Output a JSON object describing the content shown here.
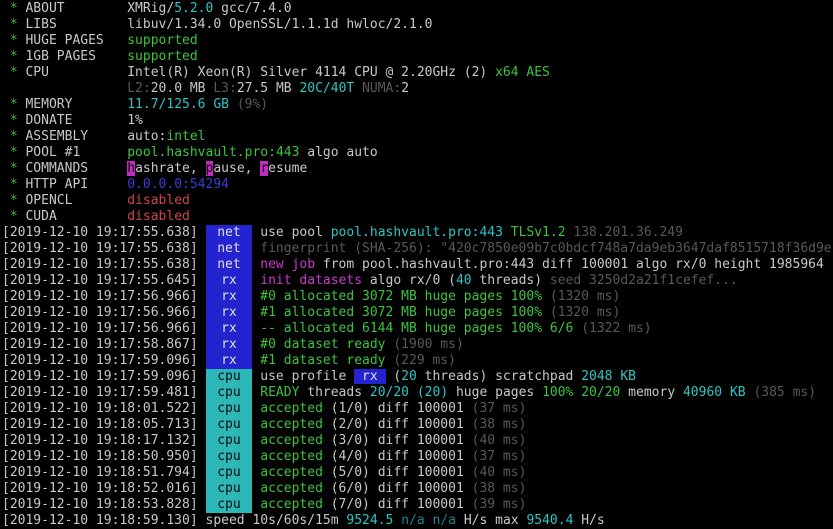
{
  "app": {
    "name": "XMRig miner console",
    "version_line": "XMRig/5.2.0 gcc/7.4.0"
  },
  "colors": {
    "background": "#000000",
    "white": "#c8c8c8",
    "green": "#3dc33d",
    "cyan": "#2ec4c4",
    "cyan_dim": "#1d8686",
    "gray": "#585858",
    "magenta": "#c93ac9",
    "red": "#cf4747",
    "blue": "#3c3cd6",
    "badge_blue_bg": "#2323d0",
    "badge_cyan_bg": "#2cb8b8",
    "badge_magenta_bg": "#c32cc3",
    "badge_text_light": "#e0e0e0",
    "badge_text_dark": "#0a0a0a"
  },
  "terminal": {
    "lines": [
      {
        "name": "about-row",
        "s": [
          {
            "t": " * ",
            "c": "g"
          },
          {
            "t": "ABOUT        ",
            "c": "w",
            "n": "config-label"
          },
          {
            "t": "XMRig/",
            "c": "w"
          },
          {
            "t": "5.2.0",
            "c": "c"
          },
          {
            "t": " gcc/7.4.0",
            "c": "w"
          }
        ]
      },
      {
        "name": "libs-row",
        "s": [
          {
            "t": " * ",
            "c": "g"
          },
          {
            "t": "LIBS         ",
            "c": "w",
            "n": "config-label"
          },
          {
            "t": "libuv/1.34.0 OpenSSL/1.1.1d hwloc/2.1.0",
            "c": "w"
          }
        ]
      },
      {
        "name": "huge-pages-row",
        "s": [
          {
            "t": " * ",
            "c": "g"
          },
          {
            "t": "HUGE PAGES   ",
            "c": "w",
            "n": "config-label"
          },
          {
            "t": "supported",
            "c": "g",
            "n": "status-value"
          }
        ]
      },
      {
        "name": "1gb-pages-row",
        "s": [
          {
            "t": " * ",
            "c": "g"
          },
          {
            "t": "1GB PAGES    ",
            "c": "w",
            "n": "config-label"
          },
          {
            "t": "supported",
            "c": "g",
            "n": "status-value"
          }
        ]
      },
      {
        "name": "cpu-row",
        "s": [
          {
            "t": " * ",
            "c": "g"
          },
          {
            "t": "CPU          ",
            "c": "w",
            "n": "config-label"
          },
          {
            "t": "Intel(R) Xeon(R) Silver 4114 CPU @ 2.20GHz (2) ",
            "c": "w"
          },
          {
            "t": "x64 AES",
            "c": "g"
          }
        ]
      },
      {
        "name": "cpu-cache-row",
        "s": [
          {
            "t": "                ",
            "c": "w"
          },
          {
            "t": "L2:",
            "c": "gy"
          },
          {
            "t": "20.0 MB ",
            "c": "w"
          },
          {
            "t": "L3:",
            "c": "gy"
          },
          {
            "t": "27.5 MB ",
            "c": "w"
          },
          {
            "t": "20C/40T ",
            "c": "c"
          },
          {
            "t": "NUMA:",
            "c": "gy"
          },
          {
            "t": "2",
            "c": "w"
          }
        ]
      },
      {
        "name": "memory-row",
        "s": [
          {
            "t": " * ",
            "c": "g"
          },
          {
            "t": "MEMORY       ",
            "c": "w",
            "n": "config-label"
          },
          {
            "t": "11.7/125.6 GB ",
            "c": "c"
          },
          {
            "t": "(9%)",
            "c": "gy"
          }
        ]
      },
      {
        "name": "donate-row",
        "s": [
          {
            "t": " * ",
            "c": "g"
          },
          {
            "t": "DONATE       ",
            "c": "w",
            "n": "config-label"
          },
          {
            "t": "1%",
            "c": "w"
          }
        ]
      },
      {
        "name": "assembly-row",
        "s": [
          {
            "t": " * ",
            "c": "g"
          },
          {
            "t": "ASSEMBLY     ",
            "c": "w",
            "n": "config-label"
          },
          {
            "t": "auto:",
            "c": "w"
          },
          {
            "t": "intel",
            "c": "g"
          }
        ]
      },
      {
        "name": "pool-row",
        "s": [
          {
            "t": " * ",
            "c": "g"
          },
          {
            "t": "POOL #1      ",
            "c": "w",
            "n": "config-label"
          },
          {
            "t": "pool.hashvault.pro:443",
            "c": "g",
            "n": "pool-address"
          },
          {
            "t": " algo auto",
            "c": "w"
          }
        ]
      },
      {
        "name": "commands-row",
        "s": [
          {
            "t": " * ",
            "c": "g"
          },
          {
            "t": "COMMANDS     ",
            "c": "w",
            "n": "config-label"
          },
          {
            "t": "h",
            "c": "bm",
            "n": "command-hotkey"
          },
          {
            "t": "ashrate, ",
            "c": "w"
          },
          {
            "t": "p",
            "c": "bm",
            "n": "command-hotkey"
          },
          {
            "t": "ause, ",
            "c": "w"
          },
          {
            "t": "r",
            "c": "bm",
            "n": "command-hotkey"
          },
          {
            "t": "esume",
            "c": "w"
          }
        ]
      },
      {
        "name": "http-api-row",
        "s": [
          {
            "t": " * ",
            "c": "g"
          },
          {
            "t": "HTTP API     ",
            "c": "w",
            "n": "config-label"
          },
          {
            "t": "0.0.0.0:54294",
            "c": "b",
            "n": "api-address"
          }
        ]
      },
      {
        "name": "opencl-row",
        "s": [
          {
            "t": " * ",
            "c": "g"
          },
          {
            "t": "OPENCL       ",
            "c": "w",
            "n": "config-label"
          },
          {
            "t": "disabled",
            "c": "r",
            "n": "status-value"
          }
        ]
      },
      {
        "name": "cuda-row",
        "s": [
          {
            "t": " * ",
            "c": "g"
          },
          {
            "t": "CUDA         ",
            "c": "w",
            "n": "config-label"
          },
          {
            "t": "disabled",
            "c": "r",
            "n": "status-value"
          }
        ]
      },
      {
        "name": "log-use-pool",
        "s": [
          {
            "t": "[2019-12-10 19:17:55.638] ",
            "c": "w",
            "n": "timestamp"
          },
          {
            "t": "net",
            "c": "bb",
            "n": "net-badge"
          },
          {
            "t": " use pool ",
            "c": "w"
          },
          {
            "t": "pool.hashvault.pro:443 ",
            "c": "c",
            "n": "pool-address"
          },
          {
            "t": "TLSv1.2 ",
            "c": "g"
          },
          {
            "t": "138.201.36.249",
            "c": "gy",
            "n": "pool-ip"
          }
        ]
      },
      {
        "name": "log-fingerprint",
        "s": [
          {
            "t": "[2019-12-10 19:17:55.638] ",
            "c": "w",
            "n": "timestamp"
          },
          {
            "t": "net",
            "c": "bb",
            "n": "net-badge"
          },
          {
            "t": " fingerprint (SHA-256): \"420c7850e09b7c0bdcf748a7da9eb3647daf8515718f36d9e",
            "c": "gy",
            "n": "tls-fingerprint"
          }
        ]
      },
      {
        "name": "log-new-job",
        "s": [
          {
            "t": "[2019-12-10 19:17:55.638] ",
            "c": "w",
            "n": "timestamp"
          },
          {
            "t": "net",
            "c": "bb",
            "n": "net-badge"
          },
          {
            "t": " ",
            "c": "w"
          },
          {
            "t": "new job",
            "c": "m"
          },
          {
            "t": " from pool.hashvault.pro:443 diff 100001 algo rx/0 height 1985964",
            "c": "w"
          }
        ]
      },
      {
        "name": "log-init-datasets",
        "s": [
          {
            "t": "[2019-12-10 19:17:55.645] ",
            "c": "w",
            "n": "timestamp"
          },
          {
            "t": "rx",
            "c": "bb",
            "n": "rx-badge"
          },
          {
            "t": " ",
            "c": "w"
          },
          {
            "t": "init datasets",
            "c": "m"
          },
          {
            "t": " algo rx/0 (",
            "c": "w"
          },
          {
            "t": "40",
            "c": "c"
          },
          {
            "t": " threads) ",
            "c": "w"
          },
          {
            "t": "seed 3250d2a21f1cefef...",
            "c": "gy"
          }
        ]
      },
      {
        "name": "log-alloc-0",
        "s": [
          {
            "t": "[2019-12-10 19:17:56.966] ",
            "c": "w",
            "n": "timestamp"
          },
          {
            "t": "rx",
            "c": "bb",
            "n": "rx-badge"
          },
          {
            "t": " ",
            "c": "w"
          },
          {
            "t": "#0 allocated 3072 MB huge pages 100% ",
            "c": "g"
          },
          {
            "t": "(1320 ms)",
            "c": "gy"
          }
        ]
      },
      {
        "name": "log-alloc-1",
        "s": [
          {
            "t": "[2019-12-10 19:17:56.966] ",
            "c": "w",
            "n": "timestamp"
          },
          {
            "t": "rx",
            "c": "bb",
            "n": "rx-badge"
          },
          {
            "t": " ",
            "c": "w"
          },
          {
            "t": "#1 allocated 3072 MB huge pages 100% ",
            "c": "g"
          },
          {
            "t": "(1320 ms)",
            "c": "gy"
          }
        ]
      },
      {
        "name": "log-alloc-total",
        "s": [
          {
            "t": "[2019-12-10 19:17:56.966] ",
            "c": "w",
            "n": "timestamp"
          },
          {
            "t": "rx",
            "c": "bb",
            "n": "rx-badge"
          },
          {
            "t": " ",
            "c": "w"
          },
          {
            "t": "-- allocated 6144 MB huge pages 100% 6/6 ",
            "c": "g"
          },
          {
            "t": "(1322 ms)",
            "c": "gy"
          }
        ]
      },
      {
        "name": "log-dataset-0",
        "s": [
          {
            "t": "[2019-12-10 19:17:58.867] ",
            "c": "w",
            "n": "timestamp"
          },
          {
            "t": "rx",
            "c": "bb",
            "n": "rx-badge"
          },
          {
            "t": " ",
            "c": "w"
          },
          {
            "t": "#0 dataset ready ",
            "c": "g"
          },
          {
            "t": "(1900 ms)",
            "c": "gy"
          }
        ]
      },
      {
        "name": "log-dataset-1",
        "s": [
          {
            "t": "[2019-12-10 19:17:59.096] ",
            "c": "w",
            "n": "timestamp"
          },
          {
            "t": "rx",
            "c": "bb",
            "n": "rx-badge"
          },
          {
            "t": " ",
            "c": "w"
          },
          {
            "t": "#1 dataset ready ",
            "c": "g"
          },
          {
            "t": "(229 ms)",
            "c": "gy"
          }
        ]
      },
      {
        "name": "log-use-profile",
        "s": [
          {
            "t": "[2019-12-10 19:17:59.096] ",
            "c": "w",
            "n": "timestamp"
          },
          {
            "t": "cpu",
            "c": "bc",
            "n": "cpu-badge"
          },
          {
            "t": " use profile ",
            "c": "w"
          },
          {
            "t": " rx ",
            "c": "bbi",
            "n": "rx-inline-badge"
          },
          {
            "t": " (",
            "c": "w"
          },
          {
            "t": "20",
            "c": "c"
          },
          {
            "t": " threads) scratchpad ",
            "c": "w"
          },
          {
            "t": "2048 KB",
            "c": "c"
          }
        ]
      },
      {
        "name": "log-ready",
        "s": [
          {
            "t": "[2019-12-10 19:17:59.481] ",
            "c": "w",
            "n": "timestamp"
          },
          {
            "t": "cpu",
            "c": "bc",
            "n": "cpu-badge"
          },
          {
            "t": " ",
            "c": "w"
          },
          {
            "t": "READY",
            "c": "g"
          },
          {
            "t": " threads ",
            "c": "w"
          },
          {
            "t": "20/20 (20)",
            "c": "c"
          },
          {
            "t": " huge pages ",
            "c": "w"
          },
          {
            "t": "100% 20/20",
            "c": "g"
          },
          {
            "t": " memory ",
            "c": "w"
          },
          {
            "t": "40960 KB ",
            "c": "c"
          },
          {
            "t": "(385 ms)",
            "c": "gy"
          }
        ]
      },
      {
        "name": "log-accepted-1",
        "s": [
          {
            "t": "[2019-12-10 19:18:01.522] ",
            "c": "w",
            "n": "timestamp"
          },
          {
            "t": "cpu",
            "c": "bc",
            "n": "cpu-badge"
          },
          {
            "t": " ",
            "c": "w"
          },
          {
            "t": "accepted",
            "c": "g"
          },
          {
            "t": " (1/0) diff 100001 ",
            "c": "w"
          },
          {
            "t": "(37 ms)",
            "c": "gy"
          }
        ]
      },
      {
        "name": "log-accepted-2",
        "s": [
          {
            "t": "[2019-12-10 19:18:05.713] ",
            "c": "w",
            "n": "timestamp"
          },
          {
            "t": "cpu",
            "c": "bc",
            "n": "cpu-badge"
          },
          {
            "t": " ",
            "c": "w"
          },
          {
            "t": "accepted",
            "c": "g"
          },
          {
            "t": " (2/0) diff 100001 ",
            "c": "w"
          },
          {
            "t": "(38 ms)",
            "c": "gy"
          }
        ]
      },
      {
        "name": "log-accepted-3",
        "s": [
          {
            "t": "[2019-12-10 19:18:17.132] ",
            "c": "w",
            "n": "timestamp"
          },
          {
            "t": "cpu",
            "c": "bc",
            "n": "cpu-badge"
          },
          {
            "t": " ",
            "c": "w"
          },
          {
            "t": "accepted",
            "c": "g"
          },
          {
            "t": " (3/0) diff 100001 ",
            "c": "w"
          },
          {
            "t": "(40 ms)",
            "c": "gy"
          }
        ]
      },
      {
        "name": "log-accepted-4",
        "s": [
          {
            "t": "[2019-12-10 19:18:50.950] ",
            "c": "w",
            "n": "timestamp"
          },
          {
            "t": "cpu",
            "c": "bc",
            "n": "cpu-badge"
          },
          {
            "t": " ",
            "c": "w"
          },
          {
            "t": "accepted",
            "c": "g"
          },
          {
            "t": " (4/0) diff 100001 ",
            "c": "w"
          },
          {
            "t": "(37 ms)",
            "c": "gy"
          }
        ]
      },
      {
        "name": "log-accepted-5",
        "s": [
          {
            "t": "[2019-12-10 19:18:51.794] ",
            "c": "w",
            "n": "timestamp"
          },
          {
            "t": "cpu",
            "c": "bc",
            "n": "cpu-badge"
          },
          {
            "t": " ",
            "c": "w"
          },
          {
            "t": "accepted",
            "c": "g"
          },
          {
            "t": " (5/0) diff 100001 ",
            "c": "w"
          },
          {
            "t": "(40 ms)",
            "c": "gy"
          }
        ]
      },
      {
        "name": "log-accepted-6",
        "s": [
          {
            "t": "[2019-12-10 19:18:52.016] ",
            "c": "w",
            "n": "timestamp"
          },
          {
            "t": "cpu",
            "c": "bc",
            "n": "cpu-badge"
          },
          {
            "t": " ",
            "c": "w"
          },
          {
            "t": "accepted",
            "c": "g"
          },
          {
            "t": " (6/0) diff 100001 ",
            "c": "w"
          },
          {
            "t": "(38 ms)",
            "c": "gy"
          }
        ]
      },
      {
        "name": "log-accepted-7",
        "s": [
          {
            "t": "[2019-12-10 19:18:53.828] ",
            "c": "w",
            "n": "timestamp"
          },
          {
            "t": "cpu",
            "c": "bc",
            "n": "cpu-badge"
          },
          {
            "t": " ",
            "c": "w"
          },
          {
            "t": "accepted",
            "c": "g"
          },
          {
            "t": " (7/0) diff 100001 ",
            "c": "w"
          },
          {
            "t": "(39 ms)",
            "c": "gy"
          }
        ]
      },
      {
        "name": "log-speed",
        "s": [
          {
            "t": "[2019-12-10 19:18:59.130] ",
            "c": "w",
            "n": "timestamp"
          },
          {
            "t": "speed 10s/60s/15m ",
            "c": "w"
          },
          {
            "t": "9524.5 ",
            "c": "c",
            "n": "hashrate-current"
          },
          {
            "t": "n/a n/a ",
            "c": "cd"
          },
          {
            "t": "H/s ",
            "c": "w"
          },
          {
            "t": "max ",
            "c": "w"
          },
          {
            "t": "9540.4 ",
            "c": "c",
            "n": "hashrate-max"
          },
          {
            "t": "H/s",
            "c": "w"
          }
        ]
      }
    ]
  }
}
